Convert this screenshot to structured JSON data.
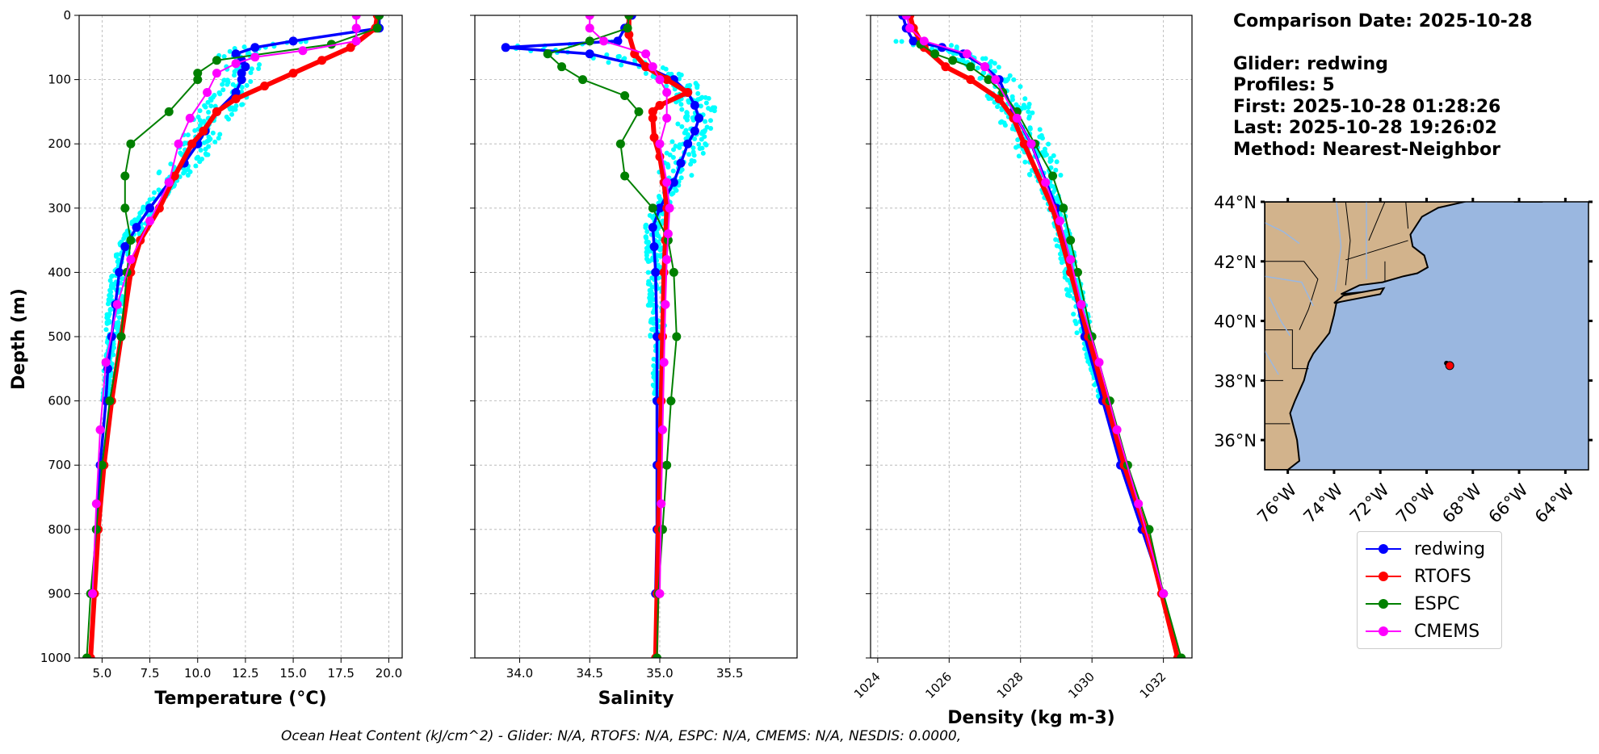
{
  "info": {
    "comparison_date": "Comparison Date: 2025-10-28",
    "glider": "Glider: redwing",
    "profiles": "Profiles: 5",
    "first": "First: 2025-10-28 01:28:26",
    "last": "Last: 2025-10-28 19:26:02",
    "method": "Method: Nearest-Neighbor"
  },
  "footer": "Ocean Heat Content (kJ/cm^2) - Glider: N/A,  RTOFS: N/A,  ESPC: N/A,  CMEMS: N/A,  NESDIS: 0.0000,",
  "legend": [
    {
      "name": "redwing",
      "color": "#0000ff"
    },
    {
      "name": "RTOFS",
      "color": "#ff0000"
    },
    {
      "name": "ESPC",
      "color": "#008000"
    },
    {
      "name": "CMEMS",
      "color": "#ff00ff"
    }
  ],
  "chart_data": [
    {
      "type": "line",
      "panel": "temperature",
      "xlabel": "Temperature (°C)",
      "ylabel": "Depth (m)",
      "xlim": [
        3.8,
        20.7
      ],
      "ylim": [
        1000,
        0
      ],
      "xticks": [
        "5.0",
        "7.5",
        "10.0",
        "12.5",
        "15.0",
        "17.5",
        "20.0"
      ],
      "yticks": [
        "0",
        "100",
        "200",
        "300",
        "400",
        "500",
        "600",
        "700",
        "800",
        "900",
        "1000"
      ],
      "grid": true,
      "glider_scatter_color": "#00ffff",
      "series": [
        {
          "name": "redwing",
          "color": "#0000ff",
          "depth": [
            0,
            20,
            40,
            50,
            60,
            70,
            80,
            90,
            100,
            120,
            150,
            180,
            200,
            230,
            260,
            300,
            330,
            360,
            400,
            450,
            500,
            550,
            600,
            700,
            800,
            900
          ],
          "values": [
            19.5,
            19.5,
            15.0,
            13.0,
            12.0,
            12.3,
            12.5,
            12.3,
            12.3,
            12.0,
            11.0,
            10.4,
            10.0,
            9.3,
            8.5,
            7.5,
            6.8,
            6.2,
            5.9,
            5.7,
            5.5,
            5.3,
            5.2,
            4.9,
            4.7,
            4.5
          ]
        },
        {
          "name": "RTOFS",
          "color": "#ff0000",
          "depth": [
            0,
            20,
            50,
            70,
            90,
            110,
            130,
            150,
            180,
            200,
            250,
            300,
            350,
            400,
            500,
            600,
            700,
            800,
            900,
            1000
          ],
          "values": [
            19.4,
            19.3,
            18.0,
            16.5,
            15.0,
            13.5,
            12.0,
            11.0,
            10.3,
            9.7,
            8.8,
            8.0,
            7.0,
            6.5,
            6.0,
            5.5,
            5.1,
            4.8,
            4.6,
            4.4
          ]
        },
        {
          "name": "ESPC",
          "color": "#008000",
          "depth": [
            0,
            20,
            45,
            70,
            90,
            100,
            150,
            200,
            250,
            300,
            350,
            400,
            500,
            600,
            700,
            800,
            900,
            1000
          ],
          "values": [
            19.5,
            19.4,
            17.0,
            11.0,
            10.0,
            10.0,
            8.5,
            6.5,
            6.2,
            6.2,
            6.5,
            6.3,
            6.0,
            5.4,
            5.0,
            4.7,
            4.4,
            4.2
          ]
        },
        {
          "name": "CMEMS",
          "color": "#ff00ff",
          "depth": [
            0,
            20,
            40,
            55,
            65,
            75,
            90,
            120,
            160,
            200,
            260,
            320,
            380,
            450,
            540,
            645,
            760,
            900
          ],
          "values": [
            18.3,
            18.3,
            18.3,
            15.5,
            13.0,
            12.0,
            11.0,
            10.5,
            9.6,
            9.0,
            8.5,
            7.5,
            6.5,
            5.8,
            5.2,
            4.9,
            4.7,
            4.5
          ]
        }
      ]
    },
    {
      "type": "line",
      "panel": "salinity",
      "xlabel": "Salinity",
      "xlim": [
        33.68,
        35.98
      ],
      "ylim": [
        1000,
        0
      ],
      "xticks": [
        "34.0",
        "34.5",
        "35.0",
        "35.5"
      ],
      "grid": true,
      "series": [
        {
          "name": "redwing",
          "color": "#0000ff",
          "depth": [
            0,
            20,
            40,
            50,
            60,
            80,
            100,
            120,
            140,
            160,
            180,
            200,
            230,
            260,
            300,
            330,
            360,
            400,
            500,
            600,
            700,
            800,
            900
          ],
          "values": [
            34.8,
            34.75,
            34.7,
            33.9,
            34.5,
            34.9,
            35.1,
            35.2,
            35.25,
            35.28,
            35.25,
            35.2,
            35.15,
            35.1,
            35.0,
            34.95,
            34.96,
            34.97,
            34.98,
            34.98,
            34.98,
            34.98,
            34.97
          ]
        },
        {
          "name": "RTOFS",
          "color": "#ff0000",
          "depth": [
            0,
            30,
            60,
            80,
            100,
            120,
            140,
            150,
            160,
            190,
            220,
            260,
            300,
            350,
            400,
            500,
            600,
            700,
            800,
            900,
            1000
          ],
          "values": [
            34.78,
            34.78,
            34.82,
            34.9,
            35.05,
            35.2,
            35.0,
            34.95,
            34.95,
            34.96,
            35.0,
            35.03,
            35.05,
            35.04,
            35.03,
            35.02,
            35.01,
            35.0,
            34.99,
            34.98,
            34.97
          ]
        },
        {
          "name": "ESPC",
          "color": "#008000",
          "depth": [
            0,
            20,
            40,
            60,
            80,
            100,
            125,
            150,
            200,
            250,
            300,
            350,
            400,
            500,
            600,
            700,
            800,
            900,
            1000
          ],
          "values": [
            34.78,
            34.77,
            34.5,
            34.2,
            34.3,
            34.45,
            34.75,
            34.85,
            34.72,
            34.75,
            34.95,
            35.06,
            35.1,
            35.12,
            35.08,
            35.05,
            35.02,
            34.99,
            34.98
          ]
        },
        {
          "name": "CMEMS",
          "color": "#ff00ff",
          "depth": [
            0,
            20,
            40,
            60,
            80,
            100,
            120,
            160,
            200,
            260,
            300,
            340,
            380,
            450,
            540,
            645,
            760,
            900
          ],
          "values": [
            34.5,
            34.5,
            34.6,
            34.9,
            34.95,
            35.0,
            35.05,
            35.05,
            35.0,
            35.05,
            35.07,
            35.06,
            35.05,
            35.04,
            35.03,
            35.02,
            35.01,
            35.0
          ]
        }
      ]
    },
    {
      "type": "line",
      "panel": "density",
      "xlabel": "Density (kg m-3)",
      "xlim": [
        1023.8,
        1032.8
      ],
      "ylim": [
        1000,
        0
      ],
      "xticks": [
        "1024",
        "1026",
        "1028",
        "1030",
        "1032"
      ],
      "grid": true,
      "series": [
        {
          "name": "redwing",
          "color": "#0000ff",
          "depth": [
            0,
            20,
            40,
            50,
            60,
            80,
            100,
            150,
            200,
            300,
            400,
            500,
            600,
            700,
            800,
            900
          ],
          "values": [
            1024.7,
            1024.8,
            1025.0,
            1025.8,
            1026.4,
            1027.0,
            1027.4,
            1027.8,
            1028.3,
            1029.0,
            1029.4,
            1029.8,
            1030.3,
            1030.8,
            1031.4,
            1032.0
          ]
        },
        {
          "name": "RTOFS",
          "color": "#ff0000",
          "depth": [
            0,
            20,
            50,
            80,
            100,
            130,
            160,
            200,
            300,
            400,
            500,
            600,
            700,
            800,
            900,
            1000
          ],
          "values": [
            1024.9,
            1025.0,
            1025.3,
            1025.9,
            1026.6,
            1027.4,
            1027.8,
            1028.1,
            1028.9,
            1029.4,
            1029.9,
            1030.4,
            1030.9,
            1031.5,
            1031.95,
            1032.4
          ]
        },
        {
          "name": "ESPC",
          "color": "#008000",
          "depth": [
            45,
            60,
            70,
            80,
            100,
            120,
            150,
            200,
            250,
            300,
            350,
            400,
            500,
            600,
            700,
            800,
            900,
            1000
          ],
          "values": [
            1025.2,
            1025.6,
            1026.1,
            1026.6,
            1027.1,
            1027.5,
            1027.9,
            1028.4,
            1028.9,
            1029.2,
            1029.4,
            1029.6,
            1030.0,
            1030.5,
            1031.0,
            1031.6,
            1032.0,
            1032.5
          ]
        },
        {
          "name": "CMEMS",
          "color": "#ff00ff",
          "depth": [
            0,
            20,
            40,
            60,
            80,
            100,
            160,
            200,
            260,
            320,
            380,
            450,
            540,
            645,
            760,
            900
          ],
          "values": [
            1024.8,
            1024.9,
            1025.3,
            1026.5,
            1027.0,
            1027.3,
            1027.9,
            1028.3,
            1028.7,
            1029.1,
            1029.4,
            1029.7,
            1030.2,
            1030.7,
            1031.3,
            1032.0
          ]
        }
      ]
    },
    {
      "type": "map",
      "panel": "location",
      "lat_ticks": [
        "44°N",
        "42°N",
        "40°N",
        "38°N",
        "36°N"
      ],
      "lon_ticks": [
        "76°W",
        "74°W",
        "72°W",
        "70°W",
        "68°W",
        "66°W",
        "64°W"
      ],
      "lon_range": [
        -77.0,
        -63.0
      ],
      "lat_range": [
        35.0,
        44.0
      ],
      "ocean_color": "#9ab7e0",
      "land_color": "#d2b38c",
      "glider_location": {
        "lon": -69.0,
        "lat": 38.5
      }
    }
  ]
}
